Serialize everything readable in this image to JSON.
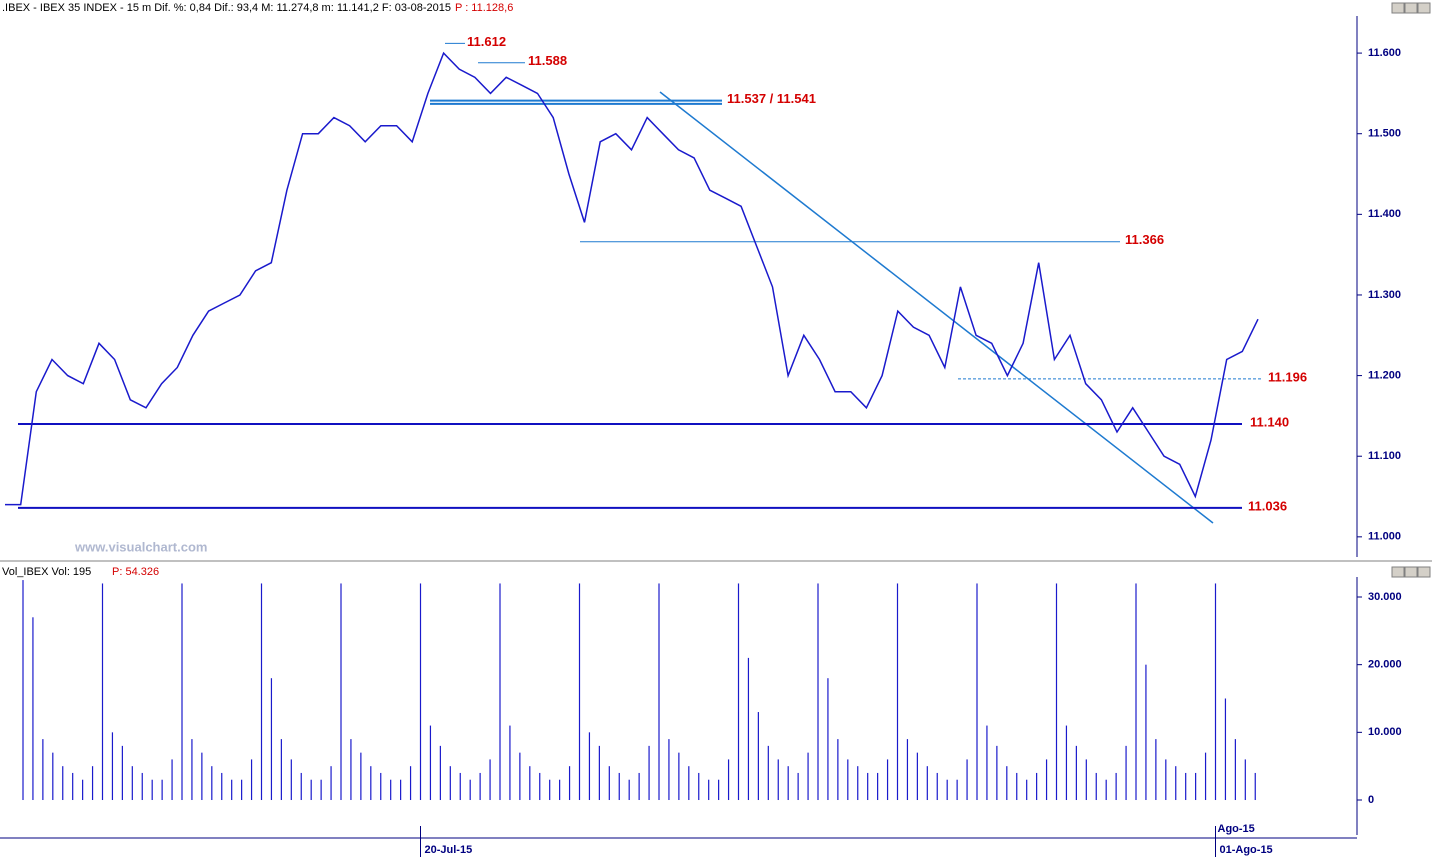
{
  "chart_data": [
    {
      "type": "line",
      "title": ".IBEX - IBEX 35 INDEX - 15 m  Dif. %: 0,84  Dif.: 93,4  M: 11.274,8  m: 11.141,2  F: 03-08-2015",
      "last_price": "P : 11.128,6",
      "watermark": "www.visualchart.com",
      "series": [
        {
          "name": "IBEX",
          "color": "#1a1acc",
          "values": [
            11.04,
            11.04,
            11.18,
            11.22,
            11.2,
            11.19,
            11.24,
            11.22,
            11.17,
            11.16,
            11.19,
            11.21,
            11.25,
            11.28,
            11.29,
            11.3,
            11.33,
            11.34,
            11.43,
            11.5,
            11.5,
            11.52,
            11.51,
            11.49,
            11.51,
            11.51,
            11.49,
            11.55,
            11.6,
            11.58,
            11.57,
            11.55,
            11.57,
            11.56,
            11.55,
            11.52,
            11.45,
            11.39,
            11.49,
            11.5,
            11.48,
            11.52,
            11.5,
            11.48,
            11.47,
            11.43,
            11.42,
            11.41,
            11.36,
            11.31,
            11.2,
            11.25,
            11.22,
            11.18,
            11.18,
            11.16,
            11.2,
            11.28,
            11.26,
            11.25,
            11.21,
            11.31,
            11.25,
            11.24,
            11.2,
            11.24,
            11.34,
            11.22,
            11.25,
            11.19,
            11.17,
            11.13,
            11.16,
            11.13,
            11.1,
            11.09,
            11.05,
            11.12,
            11.22,
            11.23,
            11.27
          ]
        }
      ],
      "levels": [
        {
          "values": [
            11.612
          ],
          "label": "11.612"
        },
        {
          "values": [
            11.588
          ],
          "label": "11.588"
        },
        {
          "values": [
            11.537,
            11.541
          ],
          "label": "11.537 / 11.541"
        },
        {
          "values": [
            11.366
          ],
          "label": "11.366"
        },
        {
          "values": [
            11.196
          ],
          "label": "11.196"
        },
        {
          "values": [
            11.14
          ],
          "label": "11.140"
        },
        {
          "values": [
            11.036
          ],
          "label": "11.036"
        }
      ],
      "ylim": [
        10.975,
        11.646
      ],
      "yticks": [
        {
          "value": 11.0,
          "label": "11.000"
        },
        {
          "value": 11.1,
          "label": "11.100"
        },
        {
          "value": 11.2,
          "label": "11.200"
        },
        {
          "value": 11.3,
          "label": "11.300"
        },
        {
          "value": 11.4,
          "label": "11.400"
        },
        {
          "value": 11.5,
          "label": "11.500"
        },
        {
          "value": 11.6,
          "label": "11.600"
        }
      ]
    },
    {
      "type": "bar",
      "title": "Vol_IBEX Vol: 195",
      "last_price": "P: 54.326",
      "color": "#1a1acc",
      "values": [
        32500,
        27000,
        9000,
        7000,
        5000,
        4000,
        3000,
        5000,
        32000,
        10000,
        8000,
        5000,
        4000,
        3000,
        3000,
        6000,
        32000,
        9000,
        7000,
        5000,
        4000,
        3000,
        3000,
        6000,
        32000,
        18000,
        9000,
        6000,
        4000,
        3000,
        3000,
        5000,
        32000,
        9000,
        7000,
        5000,
        4000,
        3000,
        3000,
        5000,
        32000,
        11000,
        8000,
        5000,
        4000,
        3000,
        4000,
        6000,
        32000,
        11000,
        7000,
        5000,
        4000,
        3000,
        3000,
        5000,
        32000,
        10000,
        8000,
        5000,
        4000,
        3000,
        4000,
        8000,
        32000,
        9000,
        7000,
        5000,
        4000,
        3000,
        3000,
        6000,
        32000,
        21000,
        13000,
        8000,
        6000,
        5000,
        4000,
        7000,
        32000,
        18000,
        9000,
        6000,
        5000,
        4000,
        4000,
        6000,
        32000,
        9000,
        7000,
        5000,
        4000,
        3000,
        3000,
        6000,
        32000,
        11000,
        8000,
        5000,
        4000,
        3000,
        4000,
        6000,
        32000,
        11000,
        8000,
        6000,
        4000,
        3000,
        4000,
        8000,
        32000,
        20000,
        9000,
        6000,
        5000,
        4000,
        4000,
        7000,
        32000,
        15000,
        9000,
        6000,
        4000
      ],
      "x_labels": [
        {
          "index": 40,
          "label": "20-Jul-15"
        },
        {
          "index": 120,
          "label": "01-Ago-15",
          "month": "Ago-15"
        }
      ],
      "ylim": [
        -5170,
        32954
      ],
      "yticks": [
        0,
        {
          "value": 10000,
          "label": "10.000"
        },
        {
          "value": 20000,
          "label": "20.000"
        },
        {
          "value": 30000,
          "label": "30.000"
        }
      ]
    }
  ]
}
